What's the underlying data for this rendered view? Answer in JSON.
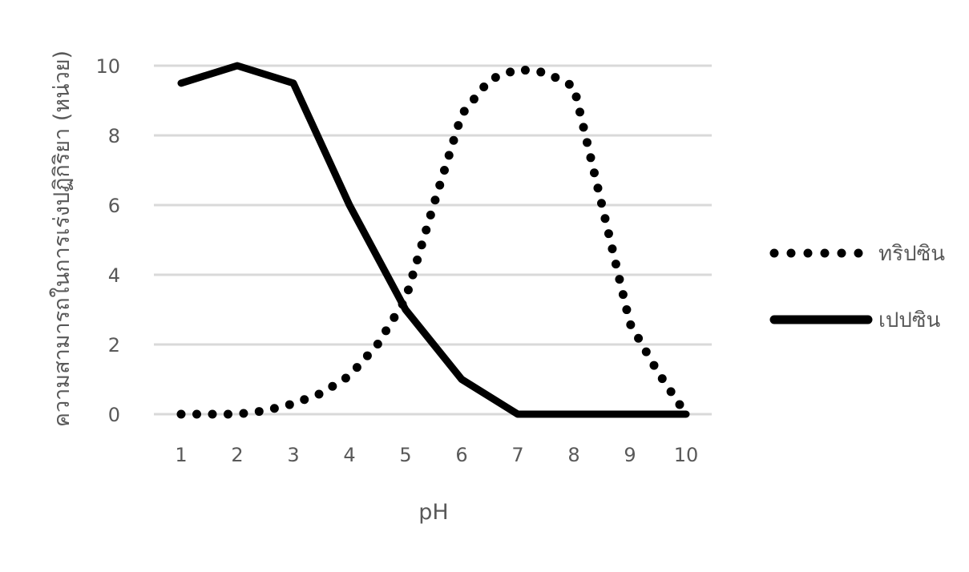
{
  "chart_data": {
    "type": "line",
    "title": "",
    "xlabel": "pH",
    "ylabel": "ความสามารถในการเร่งปฏิกิริยา (หน่วย)",
    "x": [
      1,
      2,
      3,
      4,
      5,
      6,
      7,
      8,
      9,
      10
    ],
    "xlim": [
      1,
      10
    ],
    "ylim": [
      0,
      10
    ],
    "yticks": [
      0,
      2,
      4,
      6,
      8,
      10
    ],
    "grid": true,
    "legend_position": "right",
    "series": [
      {
        "name": "ทริปซิน",
        "style": "dotted",
        "color": "#000000",
        "points": [
          [
            1,
            0
          ],
          [
            1.5,
            0
          ],
          [
            2,
            0
          ],
          [
            2.5,
            0.1
          ],
          [
            3,
            0.3
          ],
          [
            3.5,
            0.6
          ],
          [
            4,
            1.1
          ],
          [
            4.5,
            2.0
          ],
          [
            5,
            3.3
          ],
          [
            5.5,
            6.0
          ],
          [
            6,
            8.6
          ],
          [
            6.5,
            9.6
          ],
          [
            7,
            9.9
          ],
          [
            7.5,
            9.8
          ],
          [
            8,
            9.4
          ],
          [
            8.5,
            6.0
          ],
          [
            9,
            2.6
          ],
          [
            9.5,
            1.2
          ],
          [
            10,
            0
          ]
        ]
      },
      {
        "name": "เปปซิน",
        "style": "solid",
        "color": "#000000",
        "points": [
          [
            1,
            9.5
          ],
          [
            2,
            10
          ],
          [
            3,
            9.5
          ],
          [
            4,
            6
          ],
          [
            5,
            3
          ],
          [
            6,
            1
          ],
          [
            7,
            0
          ],
          [
            8,
            0
          ],
          [
            9,
            0
          ],
          [
            10,
            0
          ]
        ]
      }
    ]
  }
}
